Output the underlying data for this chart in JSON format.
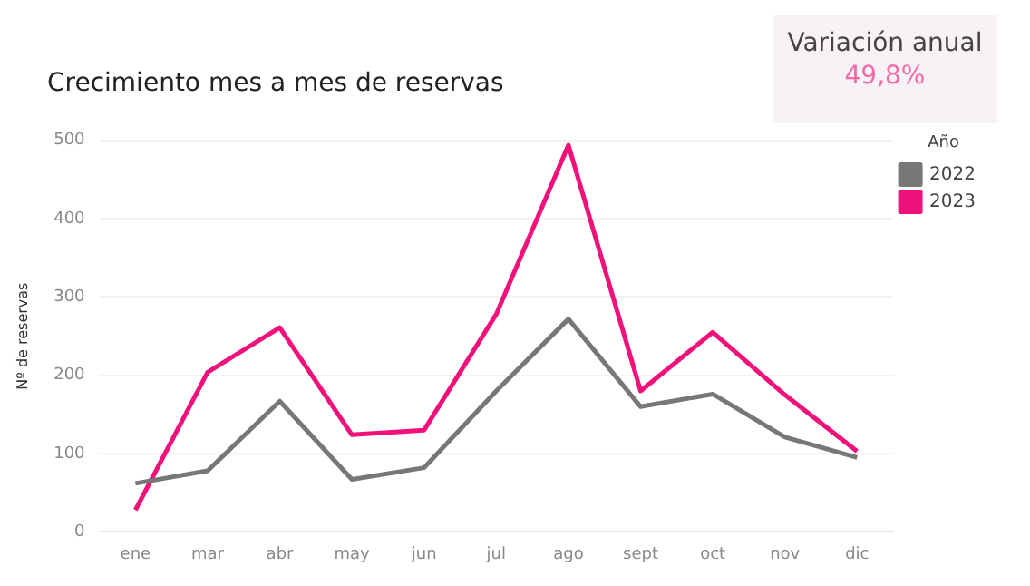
{
  "chart_data": [
    {
      "type": "line",
      "title": "Crecimiento mes a mes de reservas",
      "ylabel": "Nº de reservas",
      "legend_title": "Año",
      "categories": [
        "ene",
        "mar",
        "abr",
        "may",
        "jun",
        "jul",
        "ago",
        "sept",
        "oct",
        "nov",
        "dic"
      ],
      "series": [
        {
          "name": "2022",
          "color": "#777777",
          "values": [
            62,
            78,
            167,
            67,
            82,
            180,
            272,
            160,
            176,
            121,
            95
          ]
        },
        {
          "name": "2023",
          "color": "#f0127a",
          "values": [
            28,
            204,
            261,
            124,
            130,
            278,
            494,
            180,
            255,
            175,
            103
          ]
        }
      ],
      "ylim": [
        0,
        500
      ],
      "yticks": [
        0,
        100,
        200,
        300,
        400,
        500
      ],
      "grid": "y",
      "legend": "top right",
      "marker": "none",
      "line_style": "solid"
    },
    {
      "type": "other",
      "title": "Variación anual",
      "annotations": [
        "49,8%"
      ]
    }
  ]
}
